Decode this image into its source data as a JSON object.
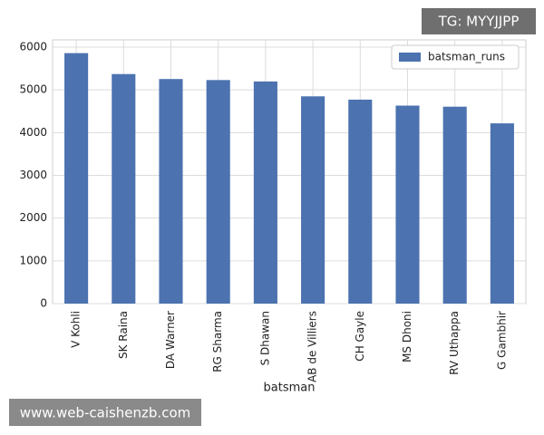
{
  "chart_data": {
    "type": "bar",
    "categories": [
      "V Kohli",
      "SK Raina",
      "DA Warner",
      "RG Sharma",
      "S Dhawan",
      "AB de Villiers",
      "CH Gayle",
      "MS Dhoni",
      "RV Uthappa",
      "G Gambhir"
    ],
    "series": [
      {
        "name": "batsman_runs",
        "color": "#4c72b0",
        "values": [
          5860,
          5370,
          5254,
          5230,
          5197,
          4849,
          4772,
          4632,
          4607,
          4217
        ]
      }
    ],
    "x_label": "batsman",
    "ylim": [
      0,
      6170
    ],
    "yticks": [
      0,
      1000,
      2000,
      3000,
      4000,
      5000,
      6000
    ],
    "grid": true,
    "legend": "upper right"
  },
  "watermarks": [
    "TG: MYYJJPP",
    "www.web-caishenzb.com"
  ]
}
